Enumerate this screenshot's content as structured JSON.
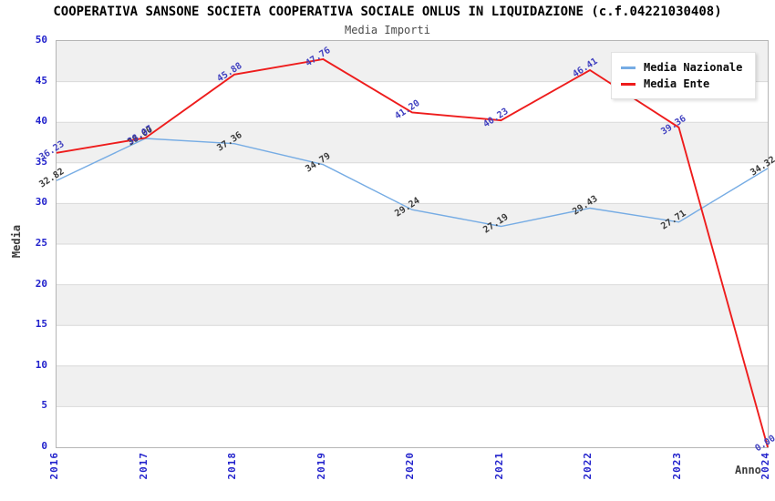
{
  "header": {
    "title": "COOPERATIVA SANSONE SOCIETA COOPERATIVA SOCIALE ONLUS IN LIQUIDAZIONE (c.f.04221030408)",
    "subtitle": "Media Importi"
  },
  "chart_data": {
    "type": "line",
    "title": "COOPERATIVA SANSONE SOCIETA COOPERATIVA SOCIALE ONLUS IN LIQUIDAZIONE (c.f.04221030408)",
    "subtitle": "Media Importi",
    "xlabel": "Anno",
    "ylabel": "Media",
    "categories": [
      "2016",
      "2017",
      "2018",
      "2019",
      "2020",
      "2021",
      "2022",
      "2023",
      "2024"
    ],
    "series": [
      {
        "name": "Media Nazionale",
        "color": "#76ace4",
        "label_color": "#3a3a3a",
        "values": [
          32.82,
          38.0,
          37.36,
          34.79,
          29.24,
          27.19,
          29.43,
          27.71,
          34.32
        ]
      },
      {
        "name": "Media Ente",
        "color": "#ee1c1c",
        "label_color": "#4040c0",
        "values": [
          36.23,
          38.07,
          45.88,
          47.76,
          41.2,
          40.23,
          46.41,
          39.36,
          0.0
        ]
      }
    ],
    "ylim": [
      0,
      50
    ],
    "yticks": [
      0,
      5,
      10,
      15,
      20,
      25,
      30,
      35,
      40,
      45,
      50
    ],
    "grid": true,
    "legend_position": "top-right",
    "value_label_decimals": 2,
    "colors": {
      "tick_label": "#2222cc",
      "band": "#f0f0f0",
      "gridline": "#d9d9d9",
      "plot_border": "#b5b5b5",
      "axis_title": "#3d3d3d"
    }
  }
}
